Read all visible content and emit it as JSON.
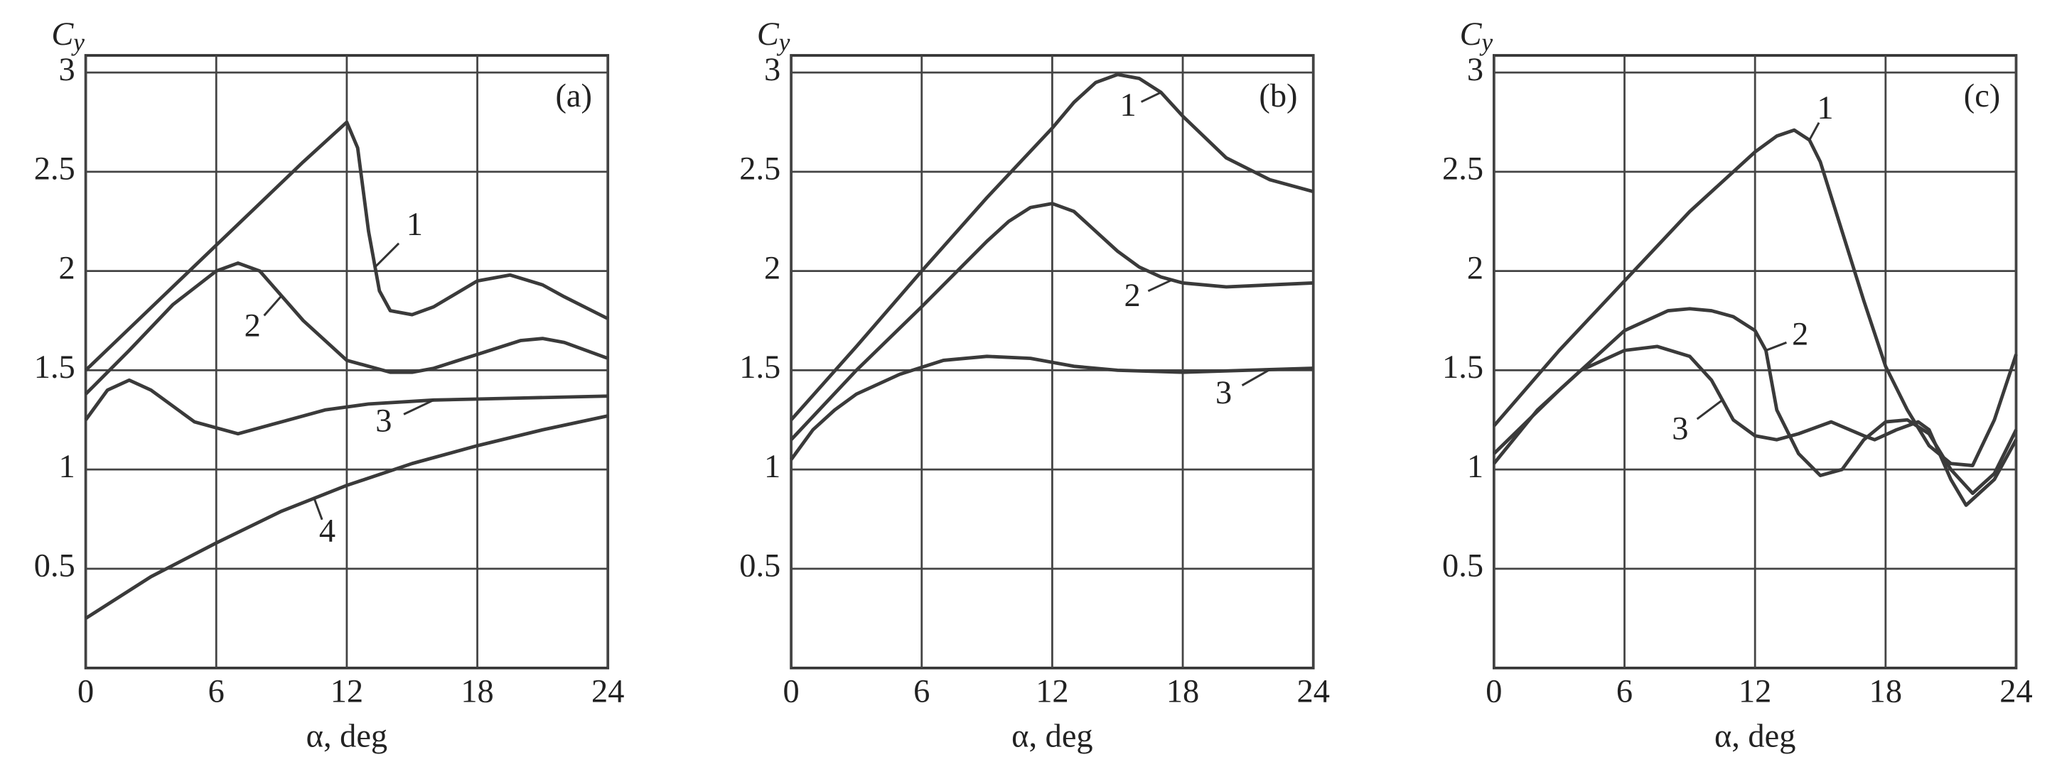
{
  "chart_data": [
    {
      "type": "line",
      "panel_label": "(a)",
      "ylabel_main": "C",
      "ylabel_sub": "y",
      "xlabel": "α, deg",
      "xlim": [
        0,
        24
      ],
      "xticks": [
        0,
        6,
        12,
        18,
        24
      ],
      "ylim": [
        0,
        3
      ],
      "yticks": [
        0.5,
        1,
        1.5,
        2,
        2.5,
        3
      ],
      "grid": true,
      "color": "#3a3a3a",
      "series": [
        {
          "name": "1",
          "x": [
            0,
            2,
            4,
            6,
            8,
            10,
            12,
            12.5,
            13,
            13.5,
            14,
            15,
            16,
            18,
            19.5,
            21,
            22,
            24
          ],
          "values": [
            1.5,
            1.71,
            1.92,
            2.13,
            2.34,
            2.55,
            2.75,
            2.62,
            2.2,
            1.9,
            1.8,
            1.78,
            1.82,
            1.95,
            1.98,
            1.93,
            1.87,
            1.76
          ]
        },
        {
          "name": "2",
          "x": [
            0,
            2,
            4,
            6,
            7,
            8,
            10,
            12,
            14,
            15,
            16,
            18,
            20,
            21,
            22,
            24
          ],
          "values": [
            1.38,
            1.6,
            1.83,
            2.0,
            2.04,
            2.0,
            1.75,
            1.55,
            1.49,
            1.49,
            1.51,
            1.58,
            1.65,
            1.66,
            1.64,
            1.56
          ]
        },
        {
          "name": "3",
          "x": [
            0,
            1,
            2,
            3,
            5,
            7,
            9,
            11,
            13,
            16,
            20,
            24
          ],
          "values": [
            1.25,
            1.4,
            1.45,
            1.4,
            1.24,
            1.18,
            1.24,
            1.3,
            1.33,
            1.35,
            1.36,
            1.37
          ]
        },
        {
          "name": "4",
          "x": [
            0,
            3,
            6,
            9,
            12,
            15,
            18,
            21,
            24
          ],
          "values": [
            0.25,
            0.46,
            0.63,
            0.79,
            0.92,
            1.03,
            1.12,
            1.2,
            1.27
          ]
        }
      ]
    },
    {
      "type": "line",
      "panel_label": "(b)",
      "ylabel_main": "C",
      "ylabel_sub": "y",
      "xlabel": "α, deg",
      "xlim": [
        0,
        24
      ],
      "xticks": [
        0,
        6,
        12,
        18,
        24
      ],
      "ylim": [
        0,
        3
      ],
      "yticks": [
        0.5,
        1,
        1.5,
        2,
        2.5,
        3
      ],
      "grid": true,
      "color": "#3a3a3a",
      "series": [
        {
          "name": "1",
          "x": [
            0,
            3,
            6,
            9,
            12,
            13,
            14,
            15,
            16,
            17,
            18,
            20,
            22,
            24
          ],
          "values": [
            1.25,
            1.62,
            2.0,
            2.37,
            2.72,
            2.85,
            2.95,
            2.99,
            2.97,
            2.9,
            2.78,
            2.57,
            2.46,
            2.4
          ]
        },
        {
          "name": "2",
          "x": [
            0,
            3,
            6,
            9,
            10,
            11,
            12,
            13,
            14,
            15,
            16,
            17,
            18,
            20,
            22,
            24
          ],
          "values": [
            1.15,
            1.5,
            1.82,
            2.15,
            2.25,
            2.32,
            2.34,
            2.3,
            2.2,
            2.1,
            2.02,
            1.97,
            1.94,
            1.92,
            1.93,
            1.94
          ]
        },
        {
          "name": "3",
          "x": [
            0,
            1,
            2,
            3,
            5,
            7,
            9,
            11,
            13,
            15,
            18,
            21,
            24
          ],
          "values": [
            1.05,
            1.2,
            1.3,
            1.38,
            1.48,
            1.55,
            1.57,
            1.56,
            1.52,
            1.5,
            1.49,
            1.5,
            1.51
          ]
        }
      ]
    },
    {
      "type": "line",
      "panel_label": "(c)",
      "ylabel_main": "C",
      "ylabel_sub": "y",
      "xlabel": "α, deg",
      "xlim": [
        0,
        24
      ],
      "xticks": [
        0,
        6,
        12,
        18,
        24
      ],
      "ylim": [
        0,
        3
      ],
      "yticks": [
        0.5,
        1,
        1.5,
        2,
        2.5,
        3
      ],
      "grid": true,
      "color": "#3a3a3a",
      "series": [
        {
          "name": "1",
          "x": [
            0,
            3,
            6,
            9,
            12,
            13,
            13.8,
            14.5,
            15,
            16,
            17,
            18,
            19,
            20,
            21,
            22,
            23,
            24
          ],
          "values": [
            1.22,
            1.6,
            1.95,
            2.3,
            2.6,
            2.68,
            2.71,
            2.66,
            2.55,
            2.2,
            1.85,
            1.52,
            1.3,
            1.12,
            1.03,
            1.02,
            1.25,
            1.58
          ]
        },
        {
          "name": "2",
          "x": [
            0,
            3,
            6,
            8,
            9,
            10,
            11,
            12,
            12.5,
            13,
            14,
            15,
            16,
            17,
            18,
            19,
            20,
            21,
            22,
            23,
            24
          ],
          "values": [
            1.08,
            1.4,
            1.7,
            1.8,
            1.81,
            1.8,
            1.77,
            1.7,
            1.6,
            1.3,
            1.08,
            0.97,
            1.0,
            1.15,
            1.24,
            1.25,
            1.18,
            1.0,
            0.88,
            0.98,
            1.2
          ]
        },
        {
          "name": "3",
          "x": [
            0,
            2,
            4,
            6,
            7.5,
            9,
            10,
            11,
            12,
            13,
            14,
            15.5,
            17,
            17.5,
            18.5,
            19.5,
            20,
            21,
            21.7,
            23,
            24
          ],
          "values": [
            1.03,
            1.3,
            1.5,
            1.6,
            1.62,
            1.57,
            1.45,
            1.25,
            1.17,
            1.15,
            1.18,
            1.24,
            1.17,
            1.15,
            1.2,
            1.24,
            1.2,
            0.95,
            0.82,
            0.95,
            1.15
          ]
        }
      ]
    }
  ]
}
